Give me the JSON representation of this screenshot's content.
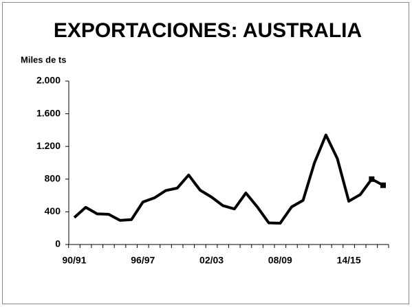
{
  "chart_data": {
    "type": "line",
    "title": "EXPORTACIONES: AUSTRALIA",
    "ylabel": "Miles de ts",
    "categories": [
      "90/91",
      null,
      null,
      null,
      null,
      null,
      "96/97",
      null,
      null,
      null,
      null,
      null,
      "02/03",
      null,
      null,
      null,
      null,
      null,
      "08/09",
      null,
      null,
      null,
      null,
      null,
      "14/15",
      null,
      null,
      null
    ],
    "series": [
      {
        "color": "#000000",
        "values": [
          330,
          455,
          375,
          370,
          295,
          305,
          520,
          570,
          660,
          690,
          850,
          665,
          580,
          475,
          435,
          630,
          460,
          265,
          260,
          460,
          540,
          1000,
          1340,
          1050,
          530,
          610,
          800,
          725
        ]
      }
    ],
    "markers": [
      26,
      27
    ],
    "ylim": [
      0,
      2000
    ],
    "yticks": [
      0,
      400,
      800,
      {
        "value": 1200,
        "label": "1.200"
      },
      {
        "value": 1600,
        "label": "1.600"
      },
      {
        "value": 2000,
        "label": "2.000"
      }
    ],
    "grid": false
  }
}
